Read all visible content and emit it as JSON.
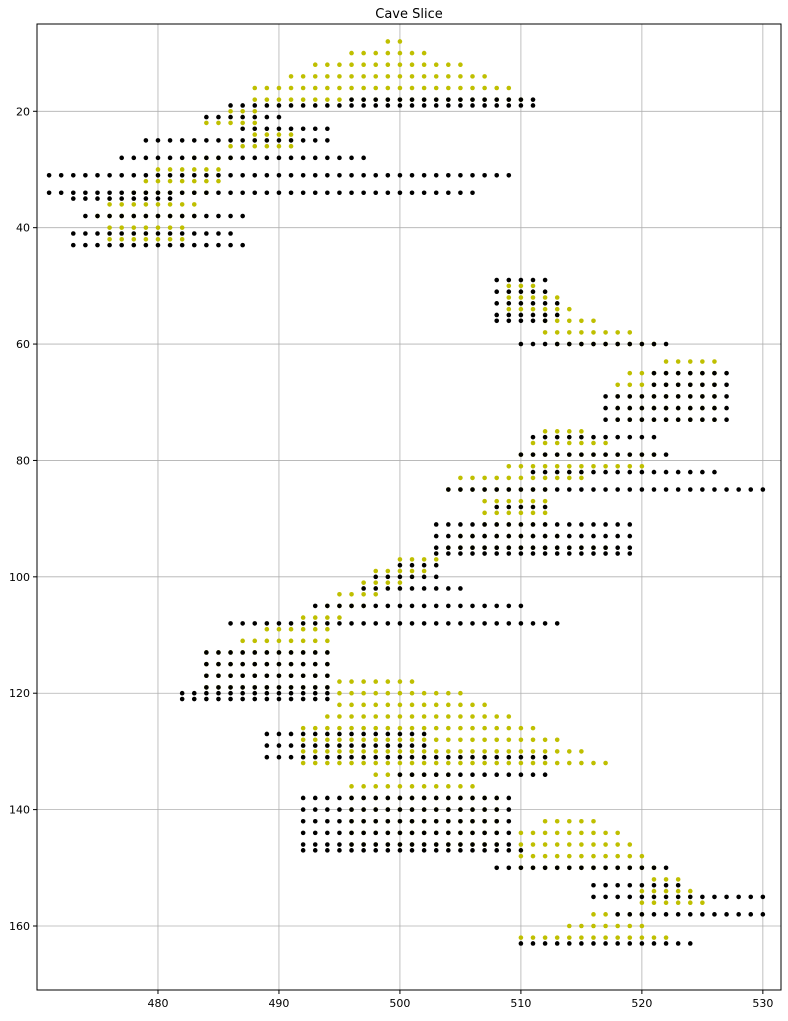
{
  "chart_data": {
    "type": "scatter",
    "title": "Cave Slice",
    "xlabel": "",
    "ylabel": "",
    "xlim": [
      470,
      531.5
    ],
    "ylim": [
      171,
      5
    ],
    "y_inverted": true,
    "grid": true,
    "legend": "none",
    "x_ticks": [
      480,
      490,
      500,
      510,
      520,
      530
    ],
    "y_ticks": [
      20,
      40,
      60,
      80,
      100,
      120,
      140,
      160
    ],
    "colors": {
      "rock": "#000000",
      "air": "#bfbf00"
    },
    "runs": {
      "rock": [
        [
          18,
          496,
          511
        ],
        [
          19,
          486,
          511
        ],
        [
          21,
          484,
          490
        ],
        [
          23,
          487,
          494
        ],
        [
          25,
          479,
          494
        ],
        [
          28,
          477,
          497
        ],
        [
          31,
          471,
          509
        ],
        [
          34,
          471,
          506
        ],
        [
          35,
          473,
          481
        ],
        [
          38,
          474,
          487
        ],
        [
          41,
          473,
          486
        ],
        [
          43,
          473,
          487
        ],
        [
          49,
          508,
          512
        ],
        [
          51,
          508,
          512
        ],
        [
          53,
          508,
          513
        ],
        [
          55,
          508,
          513
        ],
        [
          56,
          508,
          512
        ],
        [
          60,
          510,
          522
        ],
        [
          65,
          521,
          527
        ],
        [
          67,
          521,
          527
        ],
        [
          69,
          517,
          527
        ],
        [
          71,
          517,
          527
        ],
        [
          73,
          517,
          527
        ],
        [
          76,
          511,
          521
        ],
        [
          79,
          510,
          522
        ],
        [
          82,
          511,
          526
        ],
        [
          85,
          504,
          530
        ],
        [
          88,
          508,
          512
        ],
        [
          91,
          503,
          519
        ],
        [
          93,
          503,
          519
        ],
        [
          95,
          503,
          519
        ],
        [
          96,
          503,
          519
        ],
        [
          98,
          500,
          503
        ],
        [
          100,
          498,
          503
        ],
        [
          102,
          497,
          505
        ],
        [
          105,
          493,
          510
        ],
        [
          108,
          486,
          513
        ],
        [
          113,
          484,
          494
        ],
        [
          115,
          484,
          494
        ],
        [
          117,
          484,
          494
        ],
        [
          119,
          484,
          494
        ],
        [
          120,
          482,
          494
        ],
        [
          121,
          482,
          494
        ],
        [
          127,
          489,
          502
        ],
        [
          129,
          489,
          502
        ],
        [
          131,
          489,
          512
        ],
        [
          134,
          500,
          512
        ],
        [
          138,
          492,
          509
        ],
        [
          140,
          492,
          509
        ],
        [
          142,
          492,
          509
        ],
        [
          144,
          492,
          509
        ],
        [
          146,
          492,
          509
        ],
        [
          147,
          492,
          510
        ],
        [
          150,
          508,
          522
        ],
        [
          153,
          516,
          523
        ],
        [
          155,
          516,
          530
        ],
        [
          158,
          518,
          530
        ],
        [
          163,
          510,
          524
        ]
      ],
      "air": [
        [
          8,
          499,
          500
        ],
        [
          10,
          496,
          502
        ],
        [
          12,
          493,
          505
        ],
        [
          14,
          491,
          507
        ],
        [
          16,
          488,
          509
        ],
        [
          18,
          488,
          510
        ],
        [
          20,
          486,
          488
        ],
        [
          22,
          484,
          488
        ],
        [
          24,
          488,
          491
        ],
        [
          26,
          486,
          491
        ],
        [
          28,
          483,
          486
        ],
        [
          30,
          480,
          485
        ],
        [
          32,
          479,
          485
        ],
        [
          34,
          478,
          484
        ],
        [
          36,
          476,
          483
        ],
        [
          38,
          475,
          483
        ],
        [
          40,
          476,
          482
        ],
        [
          42,
          476,
          482
        ],
        [
          50,
          509,
          511
        ],
        [
          52,
          509,
          513
        ],
        [
          54,
          509,
          514
        ],
        [
          56,
          512,
          516
        ],
        [
          58,
          512,
          519
        ],
        [
          60,
          513,
          521
        ],
        [
          63,
          522,
          526
        ],
        [
          65,
          519,
          526
        ],
        [
          67,
          518,
          526
        ],
        [
          69,
          518,
          526
        ],
        [
          71,
          518,
          526
        ],
        [
          73,
          518,
          526
        ],
        [
          75,
          512,
          515
        ],
        [
          77,
          511,
          517
        ],
        [
          79,
          510,
          521
        ],
        [
          81,
          509,
          520
        ],
        [
          83,
          505,
          515
        ],
        [
          85,
          504,
          512
        ],
        [
          87,
          507,
          512
        ],
        [
          89,
          507,
          512
        ],
        [
          91,
          507,
          512
        ],
        [
          93,
          505,
          513
        ],
        [
          95,
          504,
          517
        ],
        [
          97,
          500,
          503
        ],
        [
          99,
          498,
          502
        ],
        [
          101,
          497,
          500
        ],
        [
          103,
          495,
          498
        ],
        [
          105,
          494,
          497
        ],
        [
          107,
          492,
          495
        ],
        [
          109,
          489,
          494
        ],
        [
          111,
          487,
          494
        ],
        [
          113,
          484,
          494
        ],
        [
          115,
          484,
          494
        ],
        [
          117,
          484,
          494
        ],
        [
          119,
          484,
          494
        ],
        [
          118,
          495,
          501
        ],
        [
          120,
          495,
          505
        ],
        [
          122,
          495,
          507
        ],
        [
          124,
          494,
          509
        ],
        [
          126,
          492,
          511
        ],
        [
          128,
          492,
          513
        ],
        [
          130,
          492,
          515
        ],
        [
          132,
          492,
          517
        ],
        [
          134,
          498,
          504
        ],
        [
          136,
          496,
          506
        ],
        [
          138,
          496,
          508
        ],
        [
          140,
          496,
          508
        ],
        [
          142,
          496,
          508
        ],
        [
          144,
          496,
          508
        ],
        [
          146,
          496,
          508
        ],
        [
          142,
          512,
          516
        ],
        [
          144,
          510,
          518
        ],
        [
          146,
          510,
          519
        ],
        [
          148,
          510,
          520
        ],
        [
          150,
          510,
          521
        ],
        [
          152,
          521,
          523
        ],
        [
          154,
          520,
          524
        ],
        [
          156,
          520,
          525
        ],
        [
          158,
          516,
          520
        ],
        [
          160,
          514,
          520
        ],
        [
          162,
          510,
          522
        ]
      ]
    }
  }
}
